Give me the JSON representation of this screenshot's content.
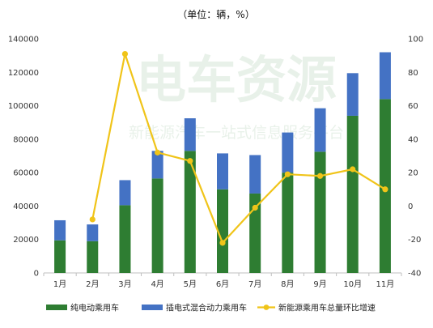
{
  "chart_data": {
    "type": "bar",
    "title": "（单位：辆，%）",
    "categories": [
      "1月",
      "2月",
      "3月",
      "4月",
      "5月",
      "6月",
      "7月",
      "8月",
      "9月",
      "10月",
      "11月"
    ],
    "series": [
      {
        "name": "纯电动乘用车",
        "type": "bar",
        "stack": "total",
        "color": "#2e7d32",
        "values": [
          19500,
          19000,
          40500,
          56500,
          73000,
          50000,
          47500,
          60000,
          72500,
          94000,
          104000
        ]
      },
      {
        "name": "插电式混合动力乘用车",
        "type": "bar",
        "stack": "total",
        "color": "#4472c4",
        "values": [
          12000,
          10000,
          15000,
          16500,
          19500,
          21500,
          23000,
          24000,
          26000,
          25500,
          28000
        ]
      },
      {
        "name": "新能源乘用车总量环比增速",
        "type": "line",
        "axis": "right",
        "color": "#f0c419",
        "values": [
          null,
          -8,
          91,
          32,
          27,
          -22,
          -1,
          19,
          18,
          22,
          10
        ]
      }
    ],
    "y_left": {
      "range": [
        0,
        140000
      ],
      "ticks": [
        "0",
        "20000",
        "40000",
        "60000",
        "80000",
        "100000",
        "120000",
        "140000"
      ]
    },
    "y_right": {
      "range": [
        -40,
        100
      ],
      "ticks": [
        "-40",
        "-20",
        "0",
        "20",
        "40",
        "60",
        "80",
        "100"
      ]
    },
    "grid": false,
    "legend_position": "bottom"
  },
  "watermark": {
    "text": "电车资源",
    "subtitle": "新能源汽车一站式信息服务平台"
  }
}
